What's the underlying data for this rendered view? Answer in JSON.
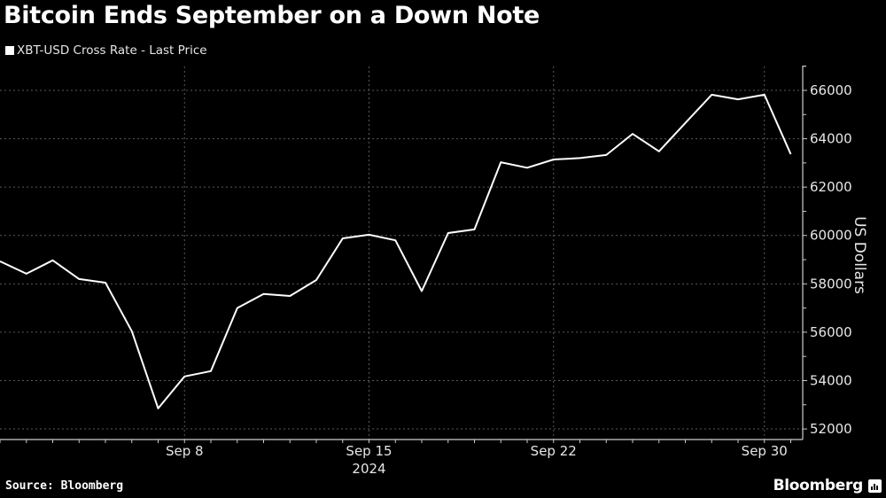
{
  "header": {
    "title": "Bitcoin Ends September on a Down Note",
    "legend_label": "XBT-USD Cross Rate - Last Price"
  },
  "footer": {
    "source": "Source: Bloomberg",
    "brand": "Bloomberg"
  },
  "colors": {
    "background": "#000000",
    "line": "#ffffff",
    "grid": "#555555",
    "text": "#e6e6e6"
  },
  "chart_data": {
    "type": "line",
    "title": "Bitcoin Ends September on a Down Note",
    "xlabel": "2024",
    "ylabel": "US Dollars",
    "ylim": [
      51600,
      67000
    ],
    "grid": true,
    "legend_position": "top-left",
    "x_tick_labels": [
      "Sep 8",
      "Sep 15",
      "Sep 22",
      "Sep 30"
    ],
    "x_year_label": "2024",
    "y_tick_labels": [
      "52000",
      "54000",
      "56000",
      "58000",
      "60000",
      "62000",
      "64000",
      "66000"
    ],
    "y_ticks": [
      52000,
      54000,
      56000,
      58000,
      60000,
      62000,
      64000,
      66000
    ],
    "series": [
      {
        "name": "XBT-USD Cross Rate - Last Price",
        "x": [
          "Sep 1",
          "Sep 2",
          "Sep 3",
          "Sep 4",
          "Sep 5",
          "Sep 6",
          "Sep 7",
          "Sep 8",
          "Sep 9",
          "Sep 10",
          "Sep 11",
          "Sep 12",
          "Sep 13",
          "Sep 14",
          "Sep 15",
          "Sep 16",
          "Sep 17",
          "Sep 18",
          "Sep 19",
          "Sep 20",
          "Sep 21",
          "Sep 22",
          "Sep 23",
          "Sep 24",
          "Sep 25",
          "Sep 26",
          "Sep 27",
          "Sep 28",
          "Sep 29",
          "Sep 30",
          "Oct 1"
        ],
        "values": [
          58930,
          58420,
          58970,
          58200,
          58050,
          56040,
          52850,
          54170,
          54390,
          57000,
          57580,
          57500,
          58160,
          59880,
          60030,
          59800,
          57700,
          60100,
          60250,
          63030,
          62800,
          63140,
          63200,
          63330,
          64200,
          63480,
          64650,
          65820,
          65630,
          65820,
          63360
        ]
      }
    ]
  }
}
